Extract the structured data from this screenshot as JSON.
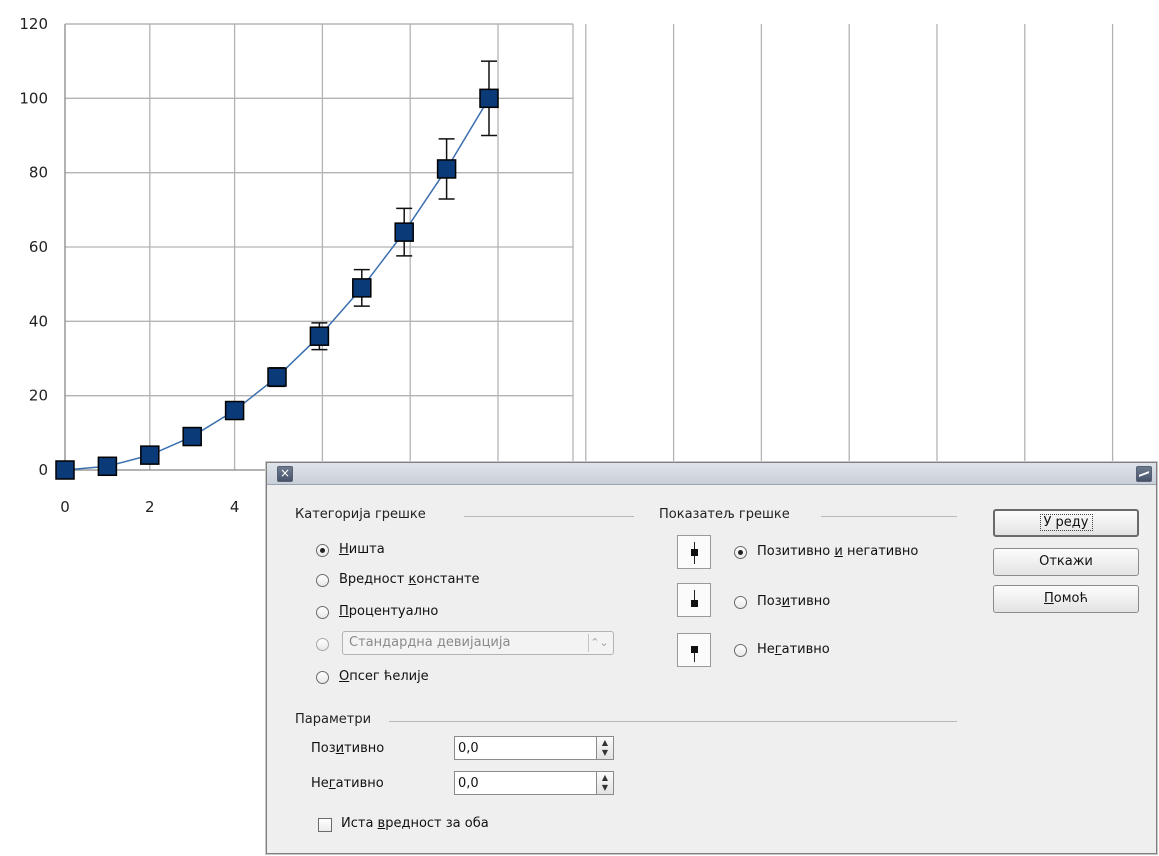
{
  "chart_data": {
    "type": "line",
    "x": [
      0,
      1,
      2,
      3,
      4,
      5,
      6,
      7,
      8,
      9,
      10
    ],
    "values": [
      0,
      1,
      4,
      9,
      16,
      25,
      36,
      49,
      64,
      81,
      100
    ],
    "error_percent": 10,
    "ylim": [
      0,
      120
    ],
    "yticks": [
      0,
      20,
      40,
      60,
      80,
      100,
      120
    ],
    "xticks_visible": [
      0,
      2,
      4
    ],
    "grid": true,
    "colors": {
      "marker": "#0a3a78",
      "line": "#3a6fb0",
      "error_bar": "#111111",
      "grid": "#b3b3b3"
    }
  },
  "dialog": {
    "error_category": {
      "title": "Категорија грешке",
      "options": [
        {
          "key": "none",
          "label_underline": "Н",
          "label_rest": "ишта",
          "selected": true
        },
        {
          "key": "constant",
          "label_pre": "Вредност ",
          "label_underline": "к",
          "label_rest": "онстанте",
          "selected": false
        },
        {
          "key": "percent",
          "label_underline": "П",
          "label_rest": "роцентуално",
          "selected": false
        },
        {
          "key": "function",
          "combo_value": "Стандардна девијација",
          "selected": false,
          "disabled": true
        },
        {
          "key": "cell_range",
          "label_underline": "О",
          "label_rest": "псег ћелије",
          "selected": false
        }
      ]
    },
    "error_indicator": {
      "title": "Показатељ грешке",
      "options": [
        {
          "key": "both",
          "label_pre": "Позитивно ",
          "label_underline": "и",
          "label_rest": " негативно",
          "selected": true
        },
        {
          "key": "positive",
          "label_pre": "Поз",
          "label_underline": "и",
          "label_rest": "тивно",
          "selected": false
        },
        {
          "key": "negative",
          "label_pre": "Не",
          "label_underline": "г",
          "label_rest": "ативно",
          "selected": false
        }
      ]
    },
    "parameters": {
      "title": "Параметри",
      "positive": {
        "label_pre": "Поз",
        "label_underline": "и",
        "label_rest": "тивно",
        "value": "0,0"
      },
      "negative": {
        "label_pre": "Не",
        "label_underline": "г",
        "label_rest": "ативно",
        "value": "0,0"
      },
      "same_value": {
        "label_pre": "Иста ",
        "label_underline": "в",
        "label_rest": "редност за оба",
        "checked": false
      }
    },
    "buttons": {
      "ok": "У реду",
      "cancel": "Откажи",
      "help_underline": "П",
      "help_rest": "омоћ"
    }
  }
}
